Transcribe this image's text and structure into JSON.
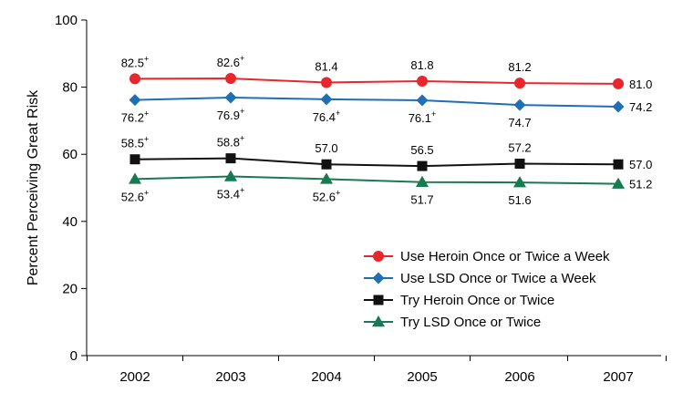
{
  "chart_data": {
    "type": "line",
    "title": "",
    "xlabel": "",
    "ylabel": "Percent Perceiving Great Risk",
    "ylim": [
      0,
      100
    ],
    "yticks": [
      0,
      20,
      40,
      60,
      80,
      100
    ],
    "categories": [
      "2002",
      "2003",
      "2004",
      "2005",
      "2006",
      "2007"
    ],
    "legend_position": "lower-right",
    "grid": false,
    "series": [
      {
        "name": "Use Heroin Once or Twice a Week",
        "color": "#e8262b",
        "marker": "circle",
        "values": [
          82.5,
          82.6,
          81.4,
          81.8,
          81.2,
          81.0
        ],
        "labels": [
          "82.5",
          "82.6",
          "81.4",
          "81.8",
          "81.2",
          "81.0"
        ],
        "sig": [
          true,
          true,
          false,
          false,
          false,
          false
        ]
      },
      {
        "name": "Use LSD Once or Twice a Week",
        "color": "#1f6fb5",
        "marker": "diamond",
        "values": [
          76.2,
          76.9,
          76.4,
          76.1,
          74.7,
          74.2
        ],
        "labels": [
          "76.2",
          "76.9",
          "76.4",
          "76.1",
          "74.7",
          "74.2"
        ],
        "sig": [
          true,
          true,
          true,
          true,
          false,
          false
        ]
      },
      {
        "name": "Try Heroin Once or Twice",
        "color": "#111111",
        "marker": "square",
        "values": [
          58.5,
          58.8,
          57.0,
          56.5,
          57.2,
          57.0
        ],
        "labels": [
          "58.5",
          "58.8",
          "57.0",
          "56.5",
          "57.2",
          "57.0"
        ],
        "sig": [
          true,
          true,
          false,
          false,
          false,
          false
        ]
      },
      {
        "name": "Try LSD Once or Twice",
        "color": "#177a52",
        "marker": "triangle",
        "values": [
          52.6,
          53.4,
          52.6,
          51.7,
          51.6,
          51.2
        ],
        "labels": [
          "52.6",
          "53.4",
          "52.6",
          "51.7",
          "51.6",
          "51.2"
        ],
        "sig": [
          true,
          true,
          true,
          false,
          false,
          false
        ]
      }
    ],
    "sig_marker": "+"
  }
}
